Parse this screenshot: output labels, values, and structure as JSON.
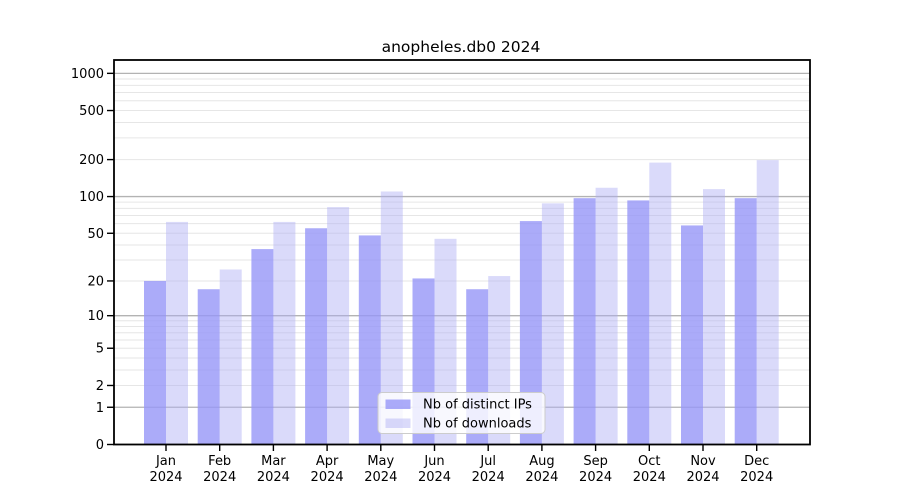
{
  "chart_data": {
    "type": "bar",
    "title": "anopheles.db0 2024",
    "categories": [
      "Jan 2024",
      "Feb 2024",
      "Mar 2024",
      "Apr 2024",
      "May 2024",
      "Jun 2024",
      "Jul 2024",
      "Aug 2024",
      "Sep 2024",
      "Oct 2024",
      "Nov 2024",
      "Dec 2024"
    ],
    "series": [
      {
        "name": "Nb of distinct IPs",
        "color": "rgba(150,150,247,0.8)",
        "values": [
          20,
          17,
          37,
          55,
          48,
          21,
          17,
          63,
          97,
          93,
          58,
          97
        ]
      },
      {
        "name": "Nb of downloads",
        "color": "rgba(172,172,244,0.45)",
        "values": [
          62,
          25,
          62,
          82,
          110,
          45,
          22,
          88,
          118,
          189,
          115,
          198
        ]
      }
    ],
    "yticks": [
      0,
      1,
      2,
      5,
      10,
      20,
      50,
      100,
      200,
      500,
      1000
    ],
    "scale": "log10(value+1)",
    "ylim": [
      0,
      1280
    ],
    "xlabel": "",
    "ylabel": "",
    "grid": true,
    "legend_position": "bottom-center",
    "colors": {
      "major_gridline": "#b3b3b3",
      "minor_gridline": "#e6e6e6",
      "axis": "#000000",
      "legend_border": "#cccccc",
      "legend_background": "rgba(255,255,255,0.8)"
    }
  }
}
